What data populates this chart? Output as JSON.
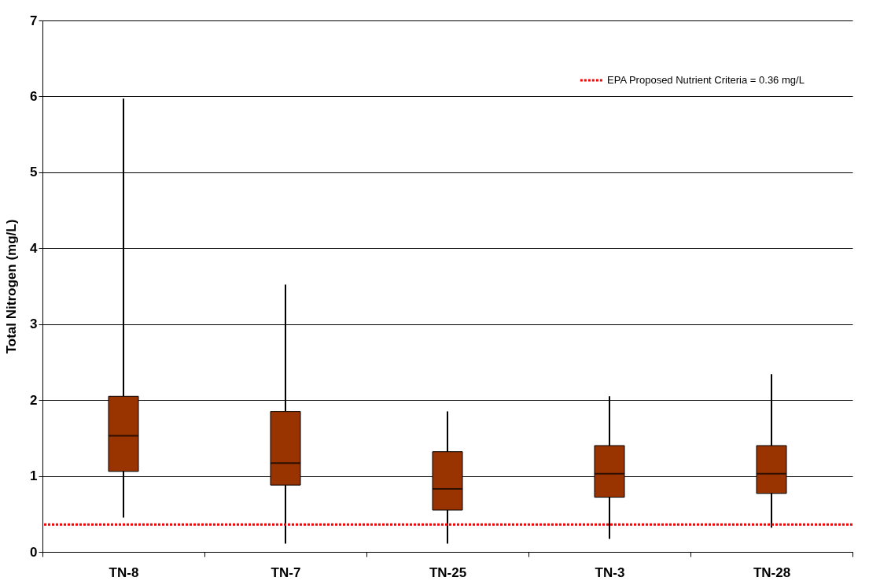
{
  "chart_data": {
    "type": "box",
    "ylabel": "Total Nitrogen (mg/L)",
    "categories": [
      "TN-8",
      "TN-7",
      "TN-25",
      "TN-3",
      "TN-28"
    ],
    "series": [
      {
        "color": "#993300",
        "boxes": [
          {
            "low": 0.45,
            "q1": 1.06,
            "median": 1.53,
            "q3": 2.05,
            "high": 5.97
          },
          {
            "low": 0.11,
            "q1": 0.88,
            "median": 1.17,
            "q3": 1.85,
            "high": 3.52
          },
          {
            "low": 0.11,
            "q1": 0.55,
            "median": 0.83,
            "q3": 1.32,
            "high": 1.85
          },
          {
            "low": 0.17,
            "q1": 0.72,
            "median": 1.03,
            "q3": 1.4,
            "high": 2.05
          },
          {
            "low": 0.32,
            "q1": 0.77,
            "median": 1.03,
            "q3": 1.4,
            "high": 2.34
          }
        ]
      }
    ],
    "ylim": [
      0,
      7
    ],
    "yticks": [
      0,
      1,
      2,
      3,
      4,
      5,
      6,
      7
    ],
    "grid": "y",
    "legend": "top right",
    "ref_lines": [
      {
        "axis": "y",
        "value": 0.36,
        "label": "EPA Proposed Nutrient Criteria = 0.36 mg/L",
        "color": "#ff0000",
        "line_style": "dotted"
      }
    ]
  }
}
